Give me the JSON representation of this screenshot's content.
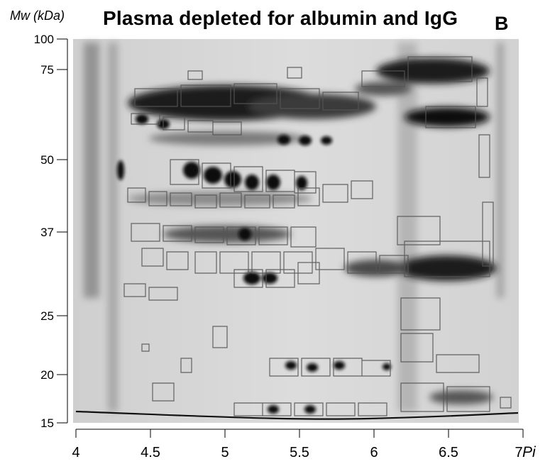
{
  "figure": {
    "title": "Plasma depleted for albumin and IgG",
    "panel_label": "B",
    "y_axis_label": "Mw (kDa)",
    "x_axis_label": "Pi",
    "y_ticks": [
      {
        "label": "100",
        "value": 100
      },
      {
        "label": "75",
        "value": 75
      },
      {
        "label": "50",
        "value": 50
      },
      {
        "label": "37",
        "value": 37
      },
      {
        "label": "25",
        "value": 25
      },
      {
        "label": "20",
        "value": 20
      },
      {
        "label": "15",
        "value": 15
      }
    ],
    "x_ticks": [
      {
        "label": "4",
        "value": 4
      },
      {
        "label": "4.5",
        "value": 4.5
      },
      {
        "label": "5",
        "value": 5
      },
      {
        "label": "5.5",
        "value": 5.5
      },
      {
        "label": "6",
        "value": 6
      },
      {
        "label": "6.5",
        "value": 6.5
      },
      {
        "label": "7",
        "value": 7
      }
    ],
    "x_range": [
      4,
      7
    ],
    "y_scale": "log",
    "gel_background": "#d6d6d6",
    "spot_color": "#111111",
    "outline_color": "#555555"
  }
}
